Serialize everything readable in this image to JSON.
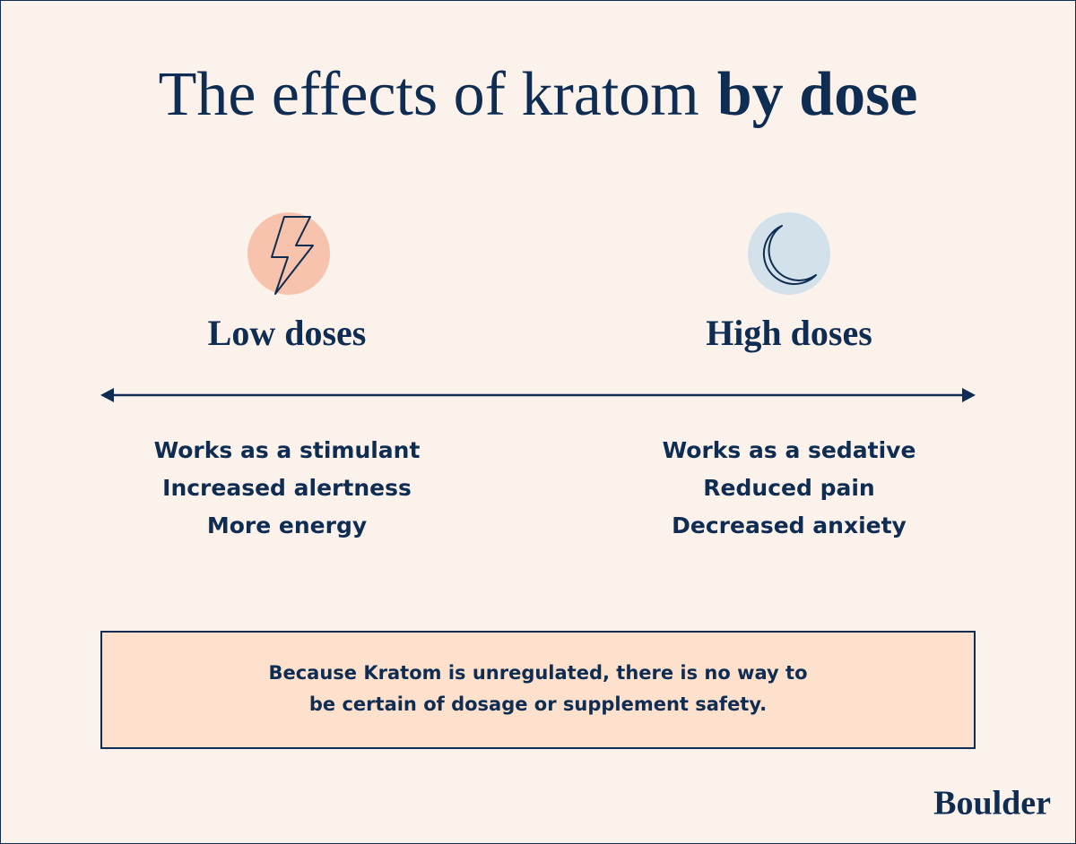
{
  "title": {
    "regular": "The effects of kratom",
    "bold": "by dose"
  },
  "columns": [
    {
      "heading": "Low doses",
      "effects": [
        "Works as a stimulant",
        "Increased alertness",
        "More energy"
      ]
    },
    {
      "heading": "High doses",
      "effects": [
        "Works as a sedative",
        "Reduced pain",
        "Decreased anxiety"
      ]
    }
  ],
  "note": [
    "Because Kratom is unregulated, there is no way to",
    "be certain of dosage or supplement safety."
  ],
  "brand": "Boulder"
}
